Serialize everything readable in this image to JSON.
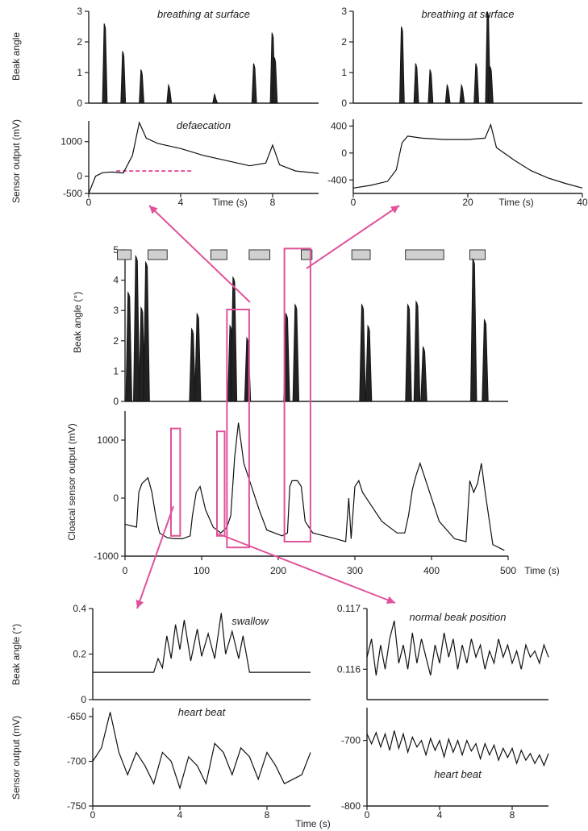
{
  "chart_data": [
    {
      "id": "p1",
      "type": "line",
      "title": "breathing at surface",
      "xlabel": "",
      "ylabel": "Beak angle",
      "xlim": [
        0,
        10
      ],
      "ylim": [
        0,
        3
      ],
      "xticks": [],
      "yticks": [
        0,
        1,
        2,
        3
      ],
      "series": [
        {
          "peaks": [
            [
              0.7,
              2.6
            ],
            [
              1.5,
              1.7
            ],
            [
              2.3,
              1.1
            ],
            [
              3.5,
              0.6
            ],
            [
              5.5,
              0.3
            ],
            [
              7.2,
              1.3
            ],
            [
              8.0,
              2.3
            ],
            [
              8.1,
              1.5
            ]
          ]
        }
      ]
    },
    {
      "id": "p2",
      "type": "line",
      "title": "defaecation",
      "xlabel": "Time (s)",
      "ylabel": "Sensor output (mV)",
      "xlim": [
        0,
        10
      ],
      "ylim": [
        -500,
        1600
      ],
      "xticks": [
        0,
        4,
        8
      ],
      "yticks": [
        -500,
        0,
        1000
      ],
      "series": [
        {
          "x": [
            0,
            0.3,
            0.6,
            1.0,
            1.5,
            1.9,
            2.2,
            2.5,
            3.0,
            4.0,
            5.0,
            6.0,
            7.0,
            7.7,
            8.0,
            8.3,
            9.0,
            10.0
          ],
          "y": [
            -500,
            0,
            100,
            120,
            90,
            600,
            1550,
            1100,
            950,
            800,
            600,
            450,
            300,
            380,
            900,
            330,
            150,
            80
          ]
        }
      ],
      "annotations": [
        {
          "type": "dashed-line",
          "x": [
            1.2,
            4.5
          ],
          "y": 150
        }
      ]
    },
    {
      "id": "p3",
      "type": "line",
      "title": "breathing at surface",
      "xlabel": "",
      "ylabel": "",
      "xlim": [
        0,
        40
      ],
      "ylim": [
        0,
        3
      ],
      "xticks": [],
      "yticks": [
        0,
        1,
        2,
        3
      ],
      "series": [
        {
          "peaks": [
            [
              8.5,
              2.5
            ],
            [
              11,
              1.3
            ],
            [
              13.5,
              1.1
            ],
            [
              16.5,
              0.6
            ],
            [
              19,
              0.6
            ],
            [
              21.5,
              1.3
            ],
            [
              23.5,
              3.0
            ],
            [
              24,
              1.2
            ]
          ]
        }
      ]
    },
    {
      "id": "p4",
      "type": "line",
      "title": "",
      "xlabel": "Time (s)",
      "ylabel": "",
      "xlim": [
        0,
        40
      ],
      "ylim": [
        -600,
        500
      ],
      "xticks": [
        0,
        20,
        40
      ],
      "yticks": [
        -400,
        0,
        400
      ],
      "series": [
        {
          "x": [
            0,
            3,
            6,
            7.5,
            8.5,
            9.5,
            12,
            16,
            20,
            23,
            24,
            25,
            28,
            31,
            34,
            37,
            40
          ],
          "y": [
            -520,
            -480,
            -420,
            -250,
            150,
            250,
            220,
            200,
            200,
            220,
            420,
            80,
            -100,
            -260,
            -370,
            -450,
            -520
          ]
        }
      ]
    },
    {
      "id": "p5",
      "type": "line",
      "title": "",
      "xlabel": "",
      "ylabel": "Beak angle (°)",
      "xlim": [
        0,
        500
      ],
      "ylim": [
        0,
        5
      ],
      "xticks": [],
      "yticks": [
        0,
        1,
        2,
        3,
        4,
        5
      ],
      "series": [
        {
          "peaks": [
            [
              5,
              3.6
            ],
            [
              15,
              4.8
            ],
            [
              22,
              3.1
            ],
            [
              28,
              4.6
            ],
            [
              88,
              2.4
            ],
            [
              95,
              2.9
            ],
            [
              138,
              2.5
            ],
            [
              142,
              4.1
            ],
            [
              160,
              2.1
            ],
            [
              211,
              2.9
            ],
            [
              223,
              3.2
            ],
            [
              310,
              3.2
            ],
            [
              318,
              2.5
            ],
            [
              370,
              3.2
            ],
            [
              381,
              3.3
            ],
            [
              390,
              1.8
            ],
            [
              455,
              4.7
            ],
            [
              470,
              2.7
            ]
          ]
        }
      ],
      "annotations": [
        {
          "type": "blocks",
          "ranges": [
            [
              -10,
              8
            ],
            [
              30,
              55
            ],
            [
              112,
              133
            ],
            [
              162,
              189
            ],
            [
              230,
              244
            ],
            [
              296,
              320
            ],
            [
              366,
              416
            ],
            [
              450,
              470
            ]
          ]
        }
      ]
    },
    {
      "id": "p6",
      "type": "line",
      "title": "",
      "xlabel": "Time (s)",
      "ylabel": "Cloacal sensor output (mV)",
      "xlim": [
        0,
        500
      ],
      "ylim": [
        -1000,
        1500
      ],
      "xticks": [
        0,
        100,
        200,
        300,
        400,
        500
      ],
      "yticks": [
        -1000,
        0,
        1000
      ],
      "series": [
        {
          "x": [
            0,
            15,
            18,
            22,
            30,
            35,
            40,
            45,
            55,
            65,
            75,
            85,
            88,
            93,
            98,
            105,
            115,
            125,
            133,
            138,
            143,
            148,
            155,
            165,
            175,
            185,
            195,
            205,
            212,
            215,
            218,
            225,
            230,
            235,
            245,
            260,
            275,
            288,
            292,
            295,
            300,
            305,
            310,
            320,
            335,
            355,
            365,
            370,
            375,
            380,
            385,
            395,
            410,
            430,
            445,
            450,
            455,
            460,
            465,
            470,
            480,
            495
          ],
          "y": [
            -450,
            -500,
            100,
            250,
            350,
            100,
            -300,
            -600,
            -680,
            -700,
            -700,
            -650,
            -300,
            100,
            200,
            -200,
            -500,
            -600,
            -500,
            -300,
            700,
            1300,
            600,
            200,
            -200,
            -550,
            -600,
            -650,
            -600,
            200,
            300,
            300,
            200,
            -400,
            -600,
            -650,
            -700,
            -750,
            0,
            -700,
            200,
            300,
            100,
            -100,
            -400,
            -600,
            -600,
            -300,
            150,
            400,
            600,
            200,
            -400,
            -700,
            -750,
            300,
            100,
            250,
            600,
            100,
            -800,
            -900
          ]
        }
      ],
      "annotations": [
        {
          "type": "boxes",
          "ranges": [
            [
              60,
              72,
              -650,
              1200
            ],
            [
              120,
              130,
              -650,
              1150
            ],
            [
              133,
              162,
              -850,
              3250
            ],
            [
              208,
              242,
              -750,
              4300
            ]
          ]
        }
      ]
    },
    {
      "id": "p7",
      "type": "line",
      "title": "swallow",
      "xlabel": "",
      "ylabel": "Beak angle (°)",
      "xlim": [
        0,
        10
      ],
      "ylim": [
        0,
        0.4
      ],
      "xticks": [],
      "yticks": [
        0,
        0.2,
        0.4
      ],
      "series": [
        {
          "x": [
            0,
            2.8,
            3.0,
            3.2,
            3.4,
            3.6,
            3.8,
            4.0,
            4.2,
            4.5,
            4.8,
            5.0,
            5.3,
            5.6,
            5.9,
            6.1,
            6.4,
            6.7,
            6.9,
            7.2,
            10.0
          ],
          "y": [
            0.12,
            0.12,
            0.18,
            0.14,
            0.28,
            0.18,
            0.33,
            0.22,
            0.35,
            0.17,
            0.31,
            0.19,
            0.29,
            0.18,
            0.38,
            0.2,
            0.3,
            0.18,
            0.28,
            0.12,
            0.12
          ]
        }
      ]
    },
    {
      "id": "p8",
      "type": "line",
      "title": "heart beat",
      "xlabel": "",
      "ylabel": "Sensor output (mV)",
      "xlim": [
        0,
        10
      ],
      "ylim": [
        -750,
        -640
      ],
      "xticks": [
        0,
        4,
        8
      ],
      "yticks": [
        -750,
        -700,
        -650
      ],
      "series": [
        {
          "x": [
            0,
            0.4,
            0.8,
            1.2,
            1.6,
            2.0,
            2.4,
            2.8,
            3.2,
            3.6,
            4.0,
            4.4,
            4.8,
            5.2,
            5.6,
            6.0,
            6.4,
            6.8,
            7.2,
            7.6,
            8.0,
            8.4,
            8.8,
            9.2,
            9.6,
            10.0
          ],
          "y": [
            -700,
            -685,
            -645,
            -690,
            -715,
            -690,
            -705,
            -725,
            -690,
            -700,
            -730,
            -695,
            -705,
            -725,
            -680,
            -690,
            -715,
            -685,
            -695,
            -720,
            -690,
            -705,
            -725,
            -720,
            -715,
            -690
          ]
        }
      ]
    },
    {
      "id": "p9",
      "type": "line",
      "title": "normal beak position",
      "xlabel": "",
      "ylabel": "",
      "xlim": [
        0,
        10
      ],
      "ylim": [
        0.1155,
        0.117
      ],
      "xticks": [],
      "yticks": [
        0.116,
        0.117
      ],
      "series": [
        {
          "x": [
            0,
            0.25,
            0.5,
            0.75,
            1.0,
            1.25,
            1.5,
            1.75,
            2.0,
            2.25,
            2.5,
            2.75,
            3.0,
            3.25,
            3.5,
            3.75,
            4.0,
            4.25,
            4.5,
            4.75,
            5.0,
            5.25,
            5.5,
            5.75,
            6.0,
            6.25,
            6.5,
            6.75,
            7.0,
            7.25,
            7.5,
            7.75,
            8.0,
            8.25,
            8.5,
            8.75,
            9.0,
            9.25,
            9.5,
            9.75,
            10.0
          ],
          "y": [
            0.1162,
            0.1165,
            0.1159,
            0.1164,
            0.116,
            0.1165,
            0.1168,
            0.1161,
            0.1164,
            0.116,
            0.1166,
            0.1161,
            0.1165,
            0.1162,
            0.1159,
            0.1164,
            0.1161,
            0.1166,
            0.1162,
            0.1165,
            0.116,
            0.1164,
            0.1161,
            0.1165,
            0.1162,
            0.1164,
            0.116,
            0.1163,
            0.1161,
            0.1165,
            0.1162,
            0.1164,
            0.1161,
            0.1163,
            0.116,
            0.1164,
            0.1162,
            0.1163,
            0.1161,
            0.1164,
            0.1162
          ]
        }
      ]
    },
    {
      "id": "p10",
      "type": "line",
      "title": "heart beat",
      "xlabel": "",
      "ylabel": "",
      "xlim": [
        0,
        10
      ],
      "ylim": [
        -800,
        -650
      ],
      "xticks": [
        0,
        4,
        8
      ],
      "yticks": [
        -800,
        -700
      ],
      "series": [
        {
          "x": [
            0,
            0.25,
            0.5,
            0.75,
            1.0,
            1.25,
            1.5,
            1.75,
            2.0,
            2.25,
            2.5,
            2.75,
            3.0,
            3.25,
            3.5,
            3.75,
            4.0,
            4.25,
            4.5,
            4.75,
            5.0,
            5.25,
            5.5,
            5.75,
            6.0,
            6.25,
            6.5,
            6.75,
            7.0,
            7.25,
            7.5,
            7.75,
            8.0,
            8.25,
            8.5,
            8.75,
            9.0,
            9.25,
            9.5,
            9.75,
            10.0
          ],
          "y": [
            -690,
            -705,
            -688,
            -710,
            -690,
            -715,
            -685,
            -712,
            -690,
            -718,
            -695,
            -710,
            -700,
            -722,
            -697,
            -715,
            -700,
            -725,
            -698,
            -718,
            -700,
            -722,
            -700,
            -716,
            -705,
            -728,
            -705,
            -722,
            -707,
            -730,
            -712,
            -726,
            -712,
            -735,
            -715,
            -730,
            -720,
            -735,
            -722,
            -738,
            -720
          ]
        }
      ]
    }
  ],
  "labels": {
    "bottom_time": "Time (s)"
  }
}
